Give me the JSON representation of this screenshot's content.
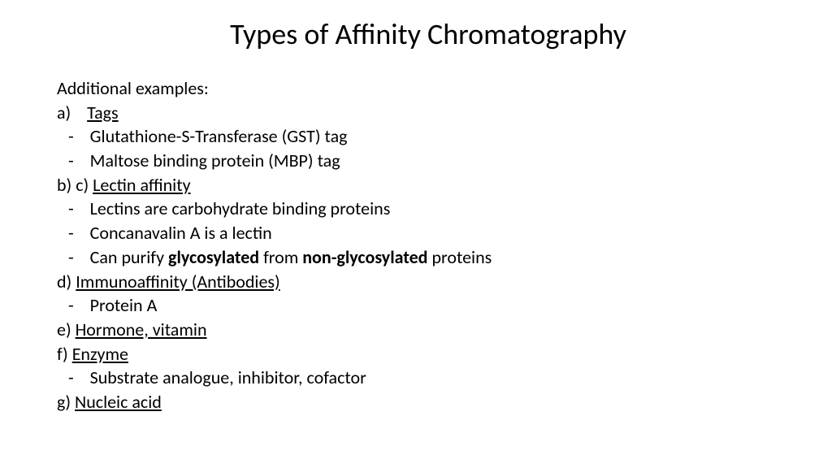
{
  "title": "Types of Affinity Chromatography",
  "intro": "Additional examples:",
  "items": {
    "a_label": "a)",
    "a_text": "Tags",
    "a_sub1": "Glutathione-S-Transferase (GST) tag",
    "a_sub2": "Maltose binding protein (MBP) tag",
    "bc_label": "b) c) ",
    "bc_text": "Lectin affinity ",
    "bc_sub1": "Lectins are carbohydrate binding proteins",
    "bc_sub2": "Concanavalin A is a lectin",
    "bc_sub3_pre": "Can purify ",
    "bc_sub3_bold1": "glycosylated",
    "bc_sub3_mid": " from ",
    "bc_sub3_bold2": "non-glycosylated",
    "bc_sub3_post": " proteins",
    "d_label": "d) ",
    "d_text": "Immunoaffinity (Antibodies)",
    "d_sub1": "Protein A",
    "e_label": "e) ",
    "e_text": "Hormone, vitamin",
    "f_label": "f) ",
    "f_text": "Enzyme ",
    "f_sub1": "Substrate analogue, inhibitor, cofactor",
    "g_label": "g) ",
    "g_text": "Nucleic acid "
  },
  "style": {
    "background_color": "#ffffff",
    "text_color": "#000000",
    "title_fontsize": 36,
    "body_fontsize": 22,
    "font_family": "Calibri"
  }
}
